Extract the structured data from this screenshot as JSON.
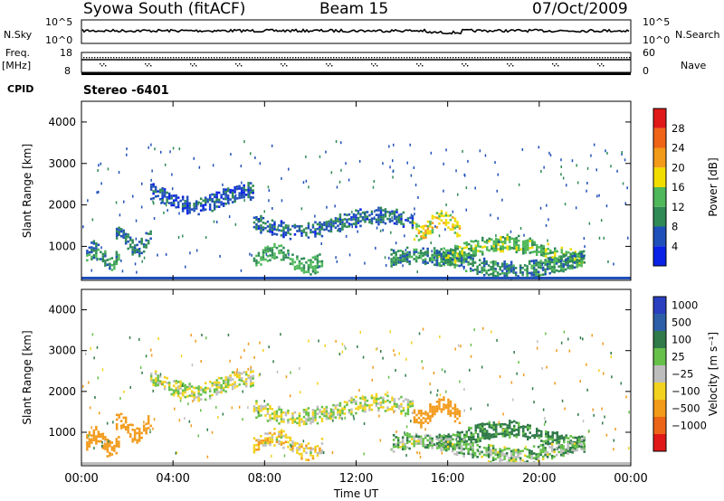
{
  "header": {
    "title": "Syowa South (fitACF)",
    "beam": "Beam 15",
    "date": "07/Oct/2009"
  },
  "noise_panel": {
    "left_label": "N.Sky",
    "right_label": "N.Search",
    "left_ticks": [
      "10^5",
      "10^0"
    ],
    "right_ticks": [
      "10^5",
      "10^0"
    ]
  },
  "freq_panel": {
    "left_label_top": "Freq.",
    "left_label_unit": "[MHz]",
    "left_ticks": [
      "18",
      "8"
    ],
    "right_label": "Nave",
    "right_ticks": [
      "60",
      "0"
    ]
  },
  "cpid_label": "CPID",
  "stereo_label": "Stereo -6401",
  "colors": {
    "power_scale": [
      "#0a22e6",
      "#1f4fb8",
      "#2f8a55",
      "#4fb85a",
      "#f2dd00",
      "#f29a1a",
      "#f06418",
      "#e01818"
    ],
    "velocity_scale": [
      "#2a3fc0",
      "#2d5fa8",
      "#2f7a48",
      "#66c04a",
      "#bdbdbd",
      "#f2d21e",
      "#f29a1a",
      "#ec6418",
      "#e01818"
    ]
  },
  "chart_data": [
    {
      "type": "heatmap",
      "title": "",
      "ylabel": "Slant Range [km]",
      "xlabel": "",
      "y_ticks": [
        "1000",
        "2000",
        "3000",
        "4000"
      ],
      "ylim": [
        180,
        4500
      ],
      "x_ticks": [
        "00:00",
        "04:00",
        "08:00",
        "12:00",
        "16:00",
        "20:00",
        "00:00"
      ],
      "colorbar": {
        "label": "Power [dB]",
        "tick_labels": [
          "4",
          "8",
          "12",
          "16",
          "20",
          "24",
          "28"
        ]
      },
      "echo_bands": [
        {
          "hour_start": 0.2,
          "hour_end": 1.6,
          "range_km": 750,
          "value_db": 10
        },
        {
          "hour_start": 1.5,
          "hour_end": 3.0,
          "range_km": 1100,
          "value_db": 8
        },
        {
          "hour_start": 3.0,
          "hour_end": 7.5,
          "range_km": 2150,
          "value_db": 6
        },
        {
          "hour_start": 7.5,
          "hour_end": 14.5,
          "range_km": 1550,
          "value_db": 7
        },
        {
          "hour_start": 14.5,
          "hour_end": 16.5,
          "range_km": 1500,
          "value_db": 18
        },
        {
          "hour_start": 15.5,
          "hour_end": 22.0,
          "range_km": 900,
          "value_db": 14
        },
        {
          "hour_start": 7.5,
          "hour_end": 10.5,
          "range_km": 700,
          "value_db": 12
        },
        {
          "hour_start": 13.5,
          "hour_end": 22.0,
          "range_km": 600,
          "value_db": 10
        }
      ]
    },
    {
      "type": "heatmap",
      "title": "",
      "ylabel": "Slant Range [km]",
      "xlabel": "Time UT",
      "y_ticks": [
        "1000",
        "2000",
        "3000",
        "4000"
      ],
      "ylim": [
        180,
        4500
      ],
      "x_ticks": [
        "00:00",
        "04:00",
        "08:00",
        "12:00",
        "16:00",
        "20:00",
        "00:00"
      ],
      "colorbar": {
        "label": "Velocity [m s⁻¹]",
        "tick_labels": [
          "1000",
          "500",
          "100",
          "25",
          "−25",
          "−100",
          "−500",
          "−1000"
        ]
      },
      "echo_bands": [
        {
          "hour_start": 0.2,
          "hour_end": 1.6,
          "range_km": 750,
          "value_ms": -300
        },
        {
          "hour_start": 1.5,
          "hour_end": 3.0,
          "range_km": 1100,
          "value_ms": -250
        },
        {
          "hour_start": 3.0,
          "hour_end": 7.5,
          "range_km": 2150,
          "value_ms": 0
        },
        {
          "hour_start": 7.5,
          "hour_end": 14.5,
          "range_km": 1550,
          "value_ms": 0
        },
        {
          "hour_start": 14.5,
          "hour_end": 16.5,
          "range_km": 1500,
          "value_ms": -300
        },
        {
          "hour_start": 15.5,
          "hour_end": 22.0,
          "range_km": 900,
          "value_ms": 150
        },
        {
          "hour_start": 7.5,
          "hour_end": 10.5,
          "range_km": 700,
          "value_ms": -60
        },
        {
          "hour_start": 13.5,
          "hour_end": 22.0,
          "range_km": 600,
          "value_ms": 50
        }
      ]
    }
  ]
}
